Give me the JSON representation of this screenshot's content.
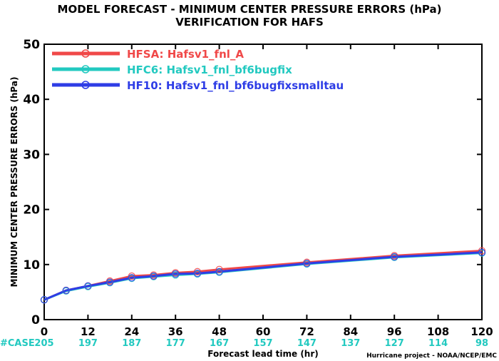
{
  "chart_data": {
    "type": "line",
    "title": "MODEL FORECAST - MINIMUM CENTER PRESSURE ERRORS (hPa)",
    "subtitle": "VERIFICATION FOR HAFS",
    "xlabel": "Forecast lead time (hr)",
    "ylabel": "MINIMUM CENTER PRESSURE ERRORS (hPa)",
    "credit": "Hurricane project - NOAA/NCEP/EMC",
    "xlim": [
      0,
      120
    ],
    "ylim": [
      0,
      50
    ],
    "xticks": [
      0,
      12,
      24,
      36,
      48,
      60,
      72,
      84,
      96,
      108,
      120
    ],
    "yticks": [
      0,
      10,
      20,
      30,
      40,
      50
    ],
    "x": [
      0,
      6,
      12,
      18,
      24,
      30,
      36,
      42,
      48,
      72,
      96,
      120
    ],
    "grid": false,
    "legend_position": "top-left",
    "case_label": "#CASE",
    "case_counts": [
      205,
      197,
      187,
      177,
      167,
      157,
      147,
      137,
      127,
      114,
      98
    ],
    "series": [
      {
        "name": "HFSA: Hafsv1_fnl_A",
        "color": "#f04848",
        "values": [
          3.6,
          5.3,
          6.1,
          7.0,
          7.9,
          8.1,
          8.5,
          8.7,
          9.1,
          10.4,
          11.6,
          12.5
        ]
      },
      {
        "name": "HFC6: Hafsv1_fnl_bf6bugfix",
        "color": "#22c9c0",
        "values": [
          3.6,
          5.2,
          6.0,
          6.7,
          7.5,
          7.8,
          8.1,
          8.3,
          8.6,
          10.1,
          11.3,
          12.1
        ]
      },
      {
        "name": "HF10: Hafsv1_fnl_bf6bugfixsmalltau",
        "color": "#2e3de6",
        "values": [
          3.6,
          5.3,
          6.1,
          6.8,
          7.6,
          7.9,
          8.3,
          8.4,
          8.7,
          10.2,
          11.4,
          12.2
        ]
      }
    ]
  }
}
